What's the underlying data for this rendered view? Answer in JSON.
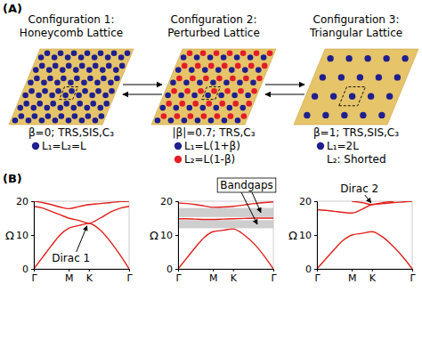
{
  "diagram": {
    "label_a": "(A)",
    "label_b": "(B)",
    "background": "#e6c46a",
    "configurations": [
      {
        "title": [
          "Configuration 1:",
          "Honeycomb Lattice"
        ],
        "lattice": "honeycomb",
        "dot_colors": [
          "#1f1f8f"
        ],
        "properties": "β=0; TRS,SIS,C₃",
        "legend": [
          {
            "color": "#1f1f8f",
            "text": "L₁=L₂=L"
          }
        ]
      },
      {
        "title": [
          "Configuration 2:",
          "Perturbed Lattice"
        ],
        "lattice": "honeycomb",
        "dot_colors": [
          "#1f1f8f",
          "#e41e26"
        ],
        "properties": "|β|=0.7; TRS,C₃",
        "legend": [
          {
            "color": "#1f1f8f",
            "text": "L₁=L(1+β)"
          },
          {
            "color": "#e41e26",
            "text": "L₂=L(1-β)"
          }
        ]
      },
      {
        "title": [
          "Configuration 3:",
          "Triangular Lattice"
        ],
        "lattice": "triangular",
        "dot_colors": [
          "#1f1f8f"
        ],
        "properties": "β=1; TRS,SIS,C₃",
        "legend": [
          {
            "color": "#1f1f8f",
            "text": "L₁=2L"
          },
          {
            "text": "L₂: Shorted"
          }
        ]
      }
    ]
  },
  "chart_data": [
    {
      "type": "line",
      "y_label": "Ω",
      "xlim": [
        0,
        2.732
      ],
      "xticks": [
        {
          "value": 0,
          "label": "Γ"
        },
        {
          "value": 1,
          "label": "M"
        },
        {
          "value": 1.577,
          "label": "K"
        },
        {
          "value": 2.732,
          "label": "Γ"
        }
      ],
      "ylim": [
        0,
        20
      ],
      "yticks": [
        0,
        10,
        20
      ],
      "series": [
        {
          "color": "#e0201b",
          "x": [
            0,
            0.25,
            0.5,
            0.75,
            1,
            1.29,
            1.577,
            1.9,
            2.2,
            2.5,
            2.732
          ],
          "values": [
            0,
            3.4,
            6.8,
            10,
            12,
            12.8,
            13.5,
            11.5,
            8,
            3.7,
            0
          ]
        },
        {
          "color": "#e0201b",
          "x": [
            0,
            0.25,
            0.5,
            0.75,
            1,
            1.29,
            1.577,
            1.9,
            2.2,
            2.5,
            2.732
          ],
          "values": [
            18.5,
            18,
            17,
            16,
            15,
            14.3,
            13.5,
            15,
            16.8,
            18,
            18.5
          ]
        },
        {
          "color": "#e0201b",
          "x": [
            0,
            0.25,
            0.5,
            0.75,
            1,
            1.29,
            1.577,
            1.9,
            2.2,
            2.5,
            2.732
          ],
          "values": [
            20,
            19.6,
            19,
            18.3,
            17.8,
            18.4,
            19,
            19.3,
            19.6,
            19.9,
            20
          ]
        }
      ],
      "annotations": [
        {
          "text": "Dirac 1",
          "x": 1.577,
          "y": 13.5
        }
      ]
    },
    {
      "type": "line",
      "y_label": "Ω",
      "xlim": [
        0,
        2.732
      ],
      "xticks": [
        {
          "value": 0,
          "label": "Γ"
        },
        {
          "value": 1,
          "label": "M"
        },
        {
          "value": 1.577,
          "label": "K"
        },
        {
          "value": 2.732,
          "label": "Γ"
        }
      ],
      "ylim": [
        0,
        20
      ],
      "yticks": [
        0,
        10,
        20
      ],
      "series": [
        {
          "color": "#e0201b",
          "x": [
            0,
            0.25,
            0.5,
            0.75,
            1,
            1.29,
            1.577,
            1.9,
            2.2,
            2.5,
            2.732
          ],
          "values": [
            0,
            3.2,
            6.4,
            9.3,
            11,
            11.4,
            11.8,
            10,
            7.2,
            3.4,
            0
          ]
        },
        {
          "color": "#e0201b",
          "x": [
            0,
            0.25,
            0.5,
            0.75,
            1,
            1.29,
            1.577,
            1.9,
            2.2,
            2.5,
            2.732
          ],
          "values": [
            14.8,
            14.8,
            14.7,
            14.6,
            14.6,
            14.7,
            14.8,
            14.9,
            15,
            15,
            15
          ]
        },
        {
          "color": "#e0201b",
          "x": [
            0,
            0.25,
            0.5,
            0.75,
            1,
            1.29,
            1.577,
            1.9,
            2.2,
            2.5,
            2.732
          ],
          "values": [
            19.5,
            19.3,
            19,
            18.6,
            18.2,
            18.3,
            18.5,
            18.9,
            19.3,
            19.6,
            19.8
          ]
        }
      ],
      "bandgaps": [
        {
          "from": 12,
          "to": 14.4
        },
        {
          "from": 15.3,
          "to": 18
        }
      ],
      "annotations": [
        {
          "text": "Bandgaps"
        }
      ]
    },
    {
      "type": "line",
      "y_label": "Ω",
      "xlim": [
        0,
        2.732
      ],
      "xticks": [
        {
          "value": 0,
          "label": "Γ"
        },
        {
          "value": 1,
          "label": "M"
        },
        {
          "value": 1.577,
          "label": "K"
        },
        {
          "value": 2.732,
          "label": "Γ"
        }
      ],
      "ylim": [
        0,
        20
      ],
      "yticks": [
        0,
        10,
        20
      ],
      "series": [
        {
          "color": "#e0201b",
          "x": [
            0,
            0.25,
            0.5,
            0.75,
            1,
            1.29,
            1.577,
            1.9,
            2.2,
            2.5,
            2.732
          ],
          "values": [
            0,
            2.9,
            5.8,
            8.4,
            10,
            10.5,
            11,
            9.3,
            6.5,
            3.1,
            0
          ]
        },
        {
          "color": "#e0201b",
          "x": [
            0,
            0.25,
            0.5,
            0.75,
            1,
            1.29,
            1.577,
            1.9,
            2.2,
            2.5,
            2.732
          ],
          "values": [
            17.5,
            17.3,
            17,
            16.7,
            16.5,
            17.6,
            19,
            19.3,
            19.6,
            19.8,
            20
          ]
        },
        {
          "color": "#e0201b",
          "x": [
            1,
            1.29,
            1.577,
            1.9,
            2.2
          ],
          "values": [
            20,
            19.6,
            19,
            19.6,
            20
          ]
        }
      ],
      "annotations": [
        {
          "text": "Dirac 2",
          "x": 1.577,
          "y": 19
        }
      ]
    }
  ]
}
